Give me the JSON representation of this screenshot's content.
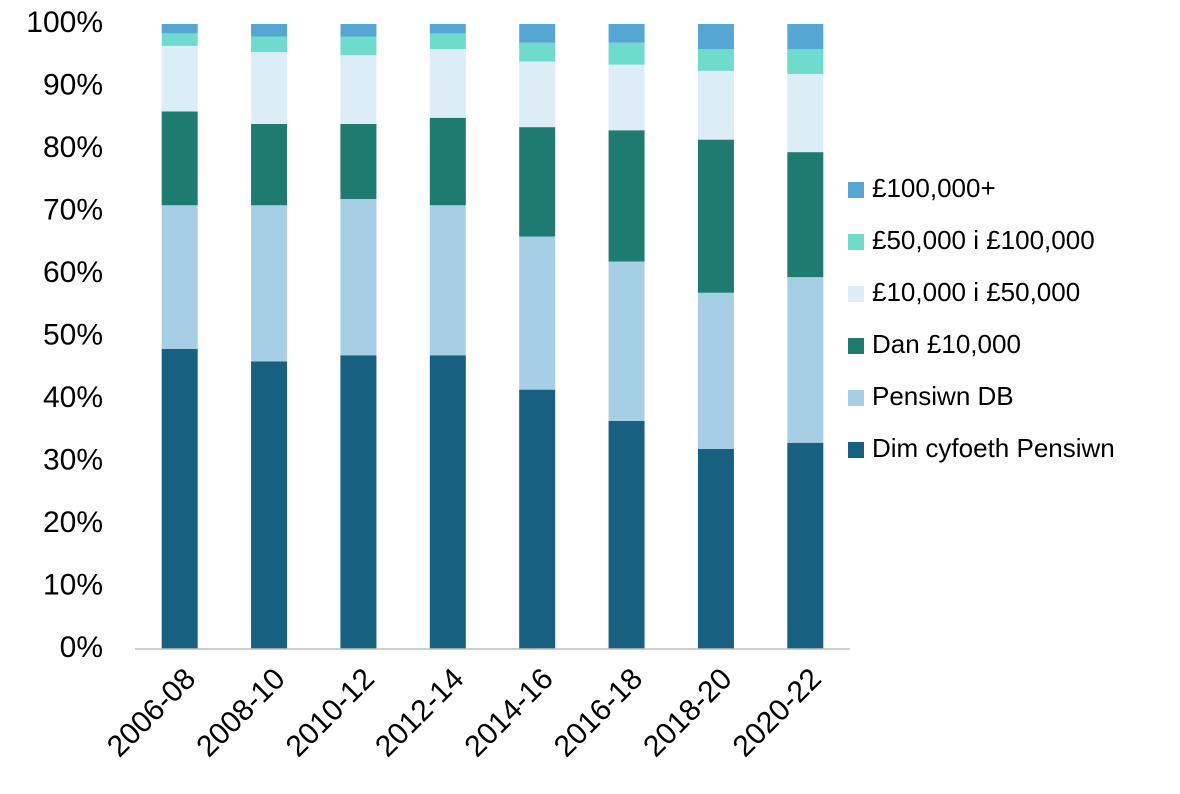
{
  "chart_data": {
    "type": "stacked-bar",
    "categories": [
      "2006-08",
      "2008-10",
      "2010-12",
      "2012-14",
      "2014-16",
      "2016-18",
      "2018-20",
      "2020-22"
    ],
    "series": [
      {
        "name": "Dim cyfoeth Pensiwn",
        "color": "#17607f",
        "values": [
          48,
          46,
          47,
          47,
          41.5,
          36.5,
          32,
          33
        ]
      },
      {
        "name": "Pensiwn DB",
        "color": "#a6cfe6",
        "values": [
          23,
          25,
          25,
          24,
          24.5,
          25.5,
          25,
          26.5
        ]
      },
      {
        "name": "Dan £10,000",
        "color": "#1f7a6f",
        "values": [
          15,
          13,
          12,
          14,
          17.5,
          21,
          24.5,
          20
        ]
      },
      {
        "name": "£10,000 i £50,000",
        "color": "#ddedf7",
        "values": [
          10.5,
          11.5,
          11,
          11,
          10.5,
          10.5,
          11,
          12.5
        ]
      },
      {
        "name": "£50,000 i £100,000",
        "color": "#6fdbcc",
        "values": [
          2,
          2.5,
          3,
          2.5,
          3,
          3.5,
          3.5,
          4
        ]
      },
      {
        "name": "£100,000+",
        "color": "#56a6d4",
        "values": [
          1.5,
          2,
          2,
          1.5,
          3,
          3,
          4,
          4
        ]
      }
    ],
    "ylim": [
      0,
      100
    ],
    "yticks": [
      {
        "value": 0,
        "label": "0%"
      },
      {
        "value": 10,
        "label": "10%"
      },
      {
        "value": 20,
        "label": "20%"
      },
      {
        "value": 30,
        "label": "30%"
      },
      {
        "value": 40,
        "label": "40%"
      },
      {
        "value": 50,
        "label": "50%"
      },
      {
        "value": 60,
        "label": "60%"
      },
      {
        "value": 70,
        "label": "70%"
      },
      {
        "value": 80,
        "label": "80%"
      },
      {
        "value": 90,
        "label": "90%"
      },
      {
        "value": 100,
        "label": "100%"
      }
    ],
    "grid": false,
    "legend": "right"
  }
}
